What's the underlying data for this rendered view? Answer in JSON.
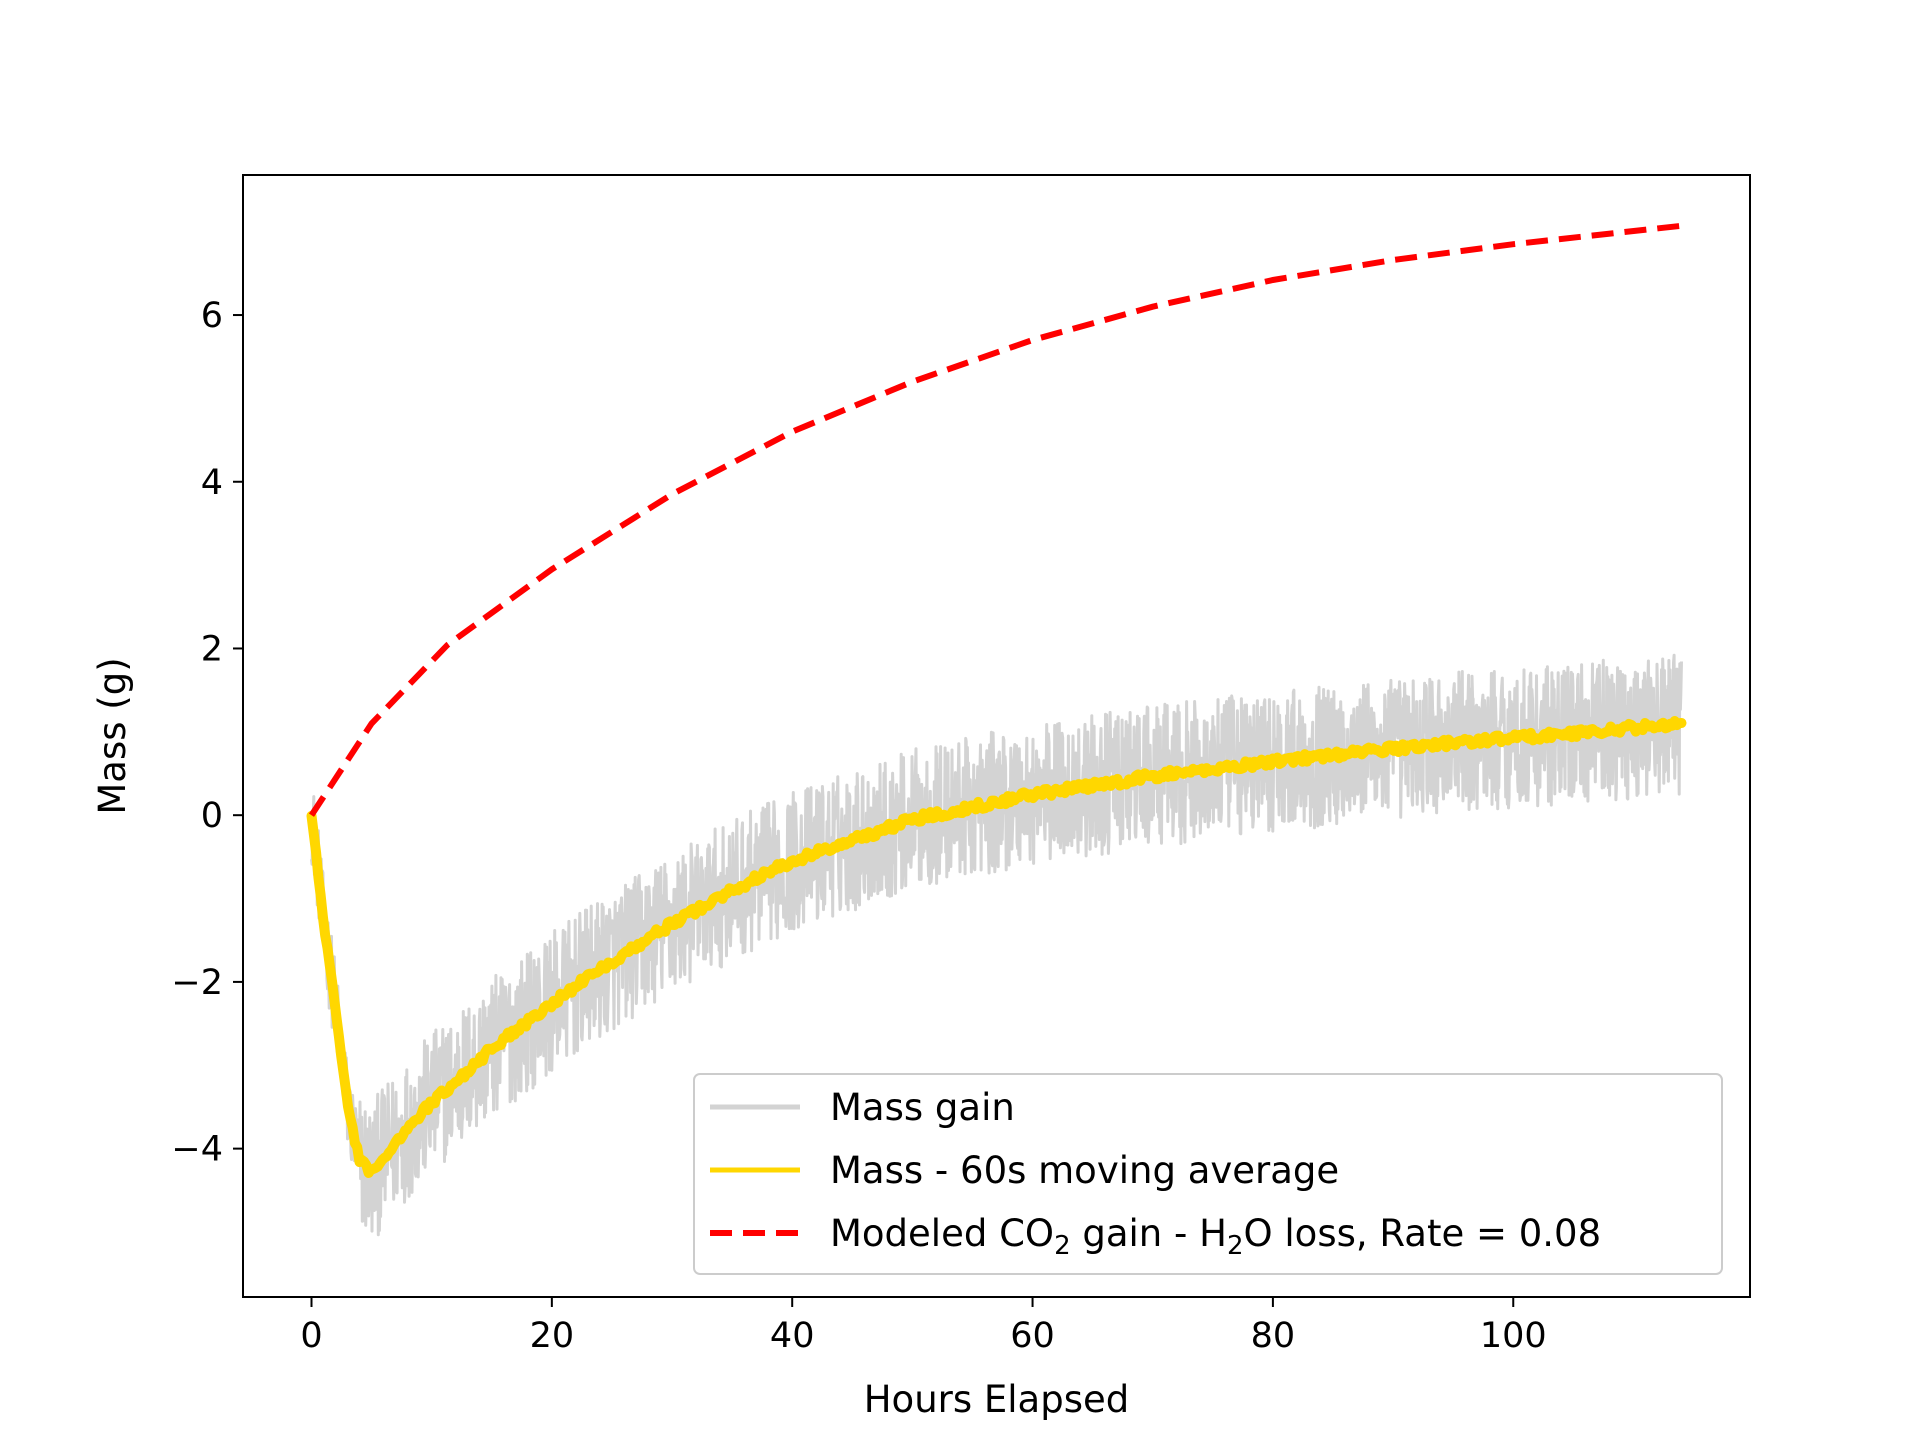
{
  "chart_data": {
    "type": "line",
    "title": "",
    "xlabel": "Hours Elapsed",
    "ylabel": "Mass (g)",
    "xlim": [
      -5.7,
      119.7
    ],
    "ylim": [
      -5.78,
      7.68
    ],
    "xticks": [
      0,
      20,
      40,
      60,
      80,
      100
    ],
    "yticks": [
      -4,
      -2,
      0,
      2,
      4,
      6
    ],
    "xtick_labels": [
      "0",
      "20",
      "40",
      "60",
      "80",
      "100"
    ],
    "ytick_labels": [
      "−4",
      "−2",
      "0",
      "2",
      "4",
      "6"
    ],
    "grid": false,
    "legend_position": "lower-right",
    "series": [
      {
        "name": "Mass gain",
        "color": "#d3d3d3",
        "style": "solid-noisy",
        "x": [
          0,
          0.5,
          1,
          2,
          3,
          4,
          5,
          6,
          8,
          10,
          12,
          15,
          20,
          25,
          30,
          35,
          40,
          45,
          50,
          55,
          60,
          65,
          70,
          75,
          80,
          85,
          90,
          95,
          100,
          105,
          110,
          114
        ],
        "y": [
          0,
          -0.6,
          -1.3,
          -2.3,
          -3.5,
          -4.15,
          -4.3,
          -4.1,
          -3.75,
          -3.45,
          -3.2,
          -2.8,
          -2.25,
          -1.75,
          -1.3,
          -0.9,
          -0.55,
          -0.3,
          -0.05,
          0.1,
          0.25,
          0.35,
          0.47,
          0.55,
          0.65,
          0.72,
          0.8,
          0.87,
          0.93,
          0.98,
          1.05,
          1.1
        ],
        "noise_band": 0.85
      },
      {
        "name": "Mass - 60s moving average",
        "color": "#ffd700",
        "style": "solid",
        "x": [
          0,
          0.5,
          1,
          2,
          3,
          4,
          5,
          6,
          8,
          10,
          12,
          15,
          20,
          25,
          30,
          35,
          40,
          45,
          50,
          55,
          60,
          65,
          70,
          75,
          80,
          85,
          90,
          95,
          100,
          105,
          110,
          114
        ],
        "y": [
          0,
          -0.6,
          -1.3,
          -2.3,
          -3.5,
          -4.15,
          -4.3,
          -4.1,
          -3.75,
          -3.45,
          -3.2,
          -2.8,
          -2.25,
          -1.75,
          -1.3,
          -0.9,
          -0.55,
          -0.3,
          -0.05,
          0.1,
          0.25,
          0.35,
          0.47,
          0.55,
          0.65,
          0.72,
          0.8,
          0.87,
          0.93,
          0.98,
          1.05,
          1.1
        ]
      },
      {
        "name": "Modeled CO₂ gain - H₂O loss, Rate = 0.08",
        "color": "#ff0000",
        "style": "dashed",
        "x": [
          0,
          5,
          11.3,
          20,
          30,
          40,
          50,
          60,
          70,
          80,
          90,
          100,
          114
        ],
        "y": [
          0,
          1.1,
          2.04,
          2.95,
          3.85,
          4.6,
          5.2,
          5.7,
          6.1,
          6.42,
          6.66,
          6.85,
          7.07
        ]
      }
    ],
    "legend": {
      "entries": [
        {
          "label_main": "Mass gain"
        },
        {
          "label_main": "Mass - 60s moving average"
        },
        {
          "label_a": "Modeled CO",
          "sub_a": "2",
          "label_b": " gain - H",
          "sub_b": "2",
          "label_c": "O loss, Rate = 0.08"
        }
      ]
    }
  }
}
